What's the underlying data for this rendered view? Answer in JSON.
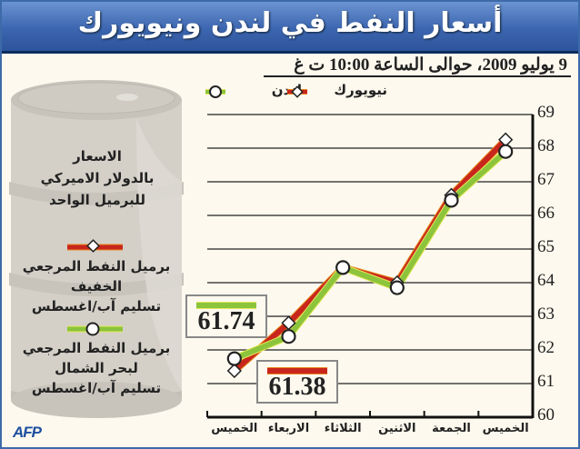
{
  "header": {
    "title": "أسعار النفط في لندن ونيويورك",
    "subtitle": "9 يوليو 2009، حوالى الساعة 10:00 ت غ"
  },
  "legend": {
    "newyork": "نيويورك",
    "london": "لندن"
  },
  "barrel": {
    "units_line1": "الاسعار",
    "units_line2": "بالدولار الاميركي",
    "units_line3": "للبرميل الواحد",
    "wti_line1": "برميل النفط المرجعي الخفيف",
    "wti_line2": "تسليم آب/اغسطس",
    "brent_line1": "برميل النفط المرجعي",
    "brent_line2": "لبحر الشمال",
    "brent_line3": "تسليم آب/اغسطس"
  },
  "callouts": {
    "london_first": "61.74",
    "newyork_first": "61.38"
  },
  "source": "AFP",
  "colors": {
    "newyork": "#c8261c",
    "london": "#8cc43c",
    "title_bg": "#3c66b0",
    "background": "#fdf9ee"
  },
  "chart_data": {
    "type": "line",
    "title": "أسعار النفط في لندن ونيويورك",
    "subtitle": "9 يوليو 2009، حوالى الساعة 10:00 ت غ",
    "ylabel": "الاسعار بالدولار الاميركي للبرميل الواحد",
    "xlabel": "",
    "categories": [
      "الخميس",
      "الاربعاء",
      "الثلاثاء",
      "الاثنين",
      "الجمعة",
      "الخميس"
    ],
    "x_order_note": "categories listed left-to-right as drawn",
    "series": [
      {
        "name": "نيويورك",
        "marker": "diamond",
        "color": "#c8261c",
        "values": [
          61.38,
          62.8,
          64.45,
          64.0,
          66.6,
          68.25
        ]
      },
      {
        "name": "لندن",
        "marker": "circle",
        "color": "#8cc43c",
        "values": [
          61.74,
          62.4,
          64.45,
          63.85,
          66.45,
          67.9
        ]
      }
    ],
    "ylim": [
      60,
      69
    ],
    "yticks": [
      60,
      61,
      62,
      63,
      64,
      65,
      66,
      67,
      68,
      69
    ],
    "y_axis_position": "right",
    "grid": true,
    "legend_position": "top",
    "annotations": [
      {
        "text": "61.74",
        "series": "لندن",
        "point": 0
      },
      {
        "text": "61.38",
        "series": "نيويورك",
        "point": 0
      }
    ]
  }
}
